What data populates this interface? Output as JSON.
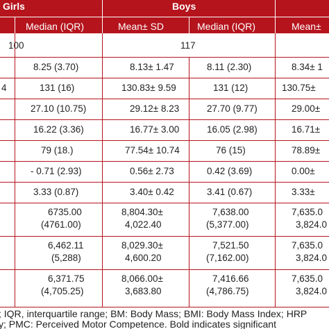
{
  "header": {
    "girls_label": "Girls",
    "boys_label": "Boys",
    "columns": {
      "girls_median": "Median (IQR)",
      "boys_mean": "Mean± SD",
      "boys_median": "Median (IQR)",
      "partial_mean": "Mean±"
    }
  },
  "counts": {
    "girls_n": "100",
    "boys_n": "117"
  },
  "rows": [
    {
      "left_fragment": "",
      "girls_median": "8.25 (3.70)",
      "boys_mean": "8.13± 1.47",
      "boys_median": "8.11 (2.30)",
      "partial": "8.34± 1"
    },
    {
      "left_fragment": "4",
      "girls_median": "131 (16)",
      "boys_mean": "130.83± 9.59",
      "boys_median": "131 (12)",
      "partial": "130.75±"
    },
    {
      "left_fragment": "",
      "girls_median": "27.10 (10.75)",
      "boys_mean": "29.12± 8.23",
      "boys_median": "27.70 (9.77)",
      "partial": "29.00±"
    },
    {
      "left_fragment": "",
      "girls_median": "16.22 (3.36)",
      "boys_mean": "16.77± 3.00",
      "boys_median": "16.05 (2.98)",
      "partial": "16.71±"
    },
    {
      "left_fragment": "",
      "girls_median": "79 (18.)",
      "boys_mean": "77.54± 10.74",
      "boys_median": "76 (15)",
      "partial": "78.89±"
    },
    {
      "left_fragment": "",
      "girls_median": "- 0.71 (2.93)",
      "boys_mean": "0.56± 2.73",
      "boys_median": "0.42 (3.69)",
      "partial": "0.00±"
    },
    {
      "left_fragment": "",
      "girls_median": "3.33 (0.87)",
      "boys_mean": "3.40± 0.42",
      "boys_median": "3.41 (0.67)",
      "partial": "3.33±"
    }
  ],
  "two_line_rows": [
    {
      "girls_median_1": "6735.00",
      "girls_median_2": "(4761.00)",
      "boys_mean_1": "8,804.30±",
      "boys_mean_2": "4,022.40",
      "boys_median_1": "7,638.00",
      "boys_median_2": "(5,377.00)",
      "partial_1": "7,635.0",
      "partial_2": "3,824.0"
    },
    {
      "girls_median_1": "6,462.11",
      "girls_median_2": "(5,288)",
      "boys_mean_1": "8,029.30±",
      "boys_mean_2": "4,600.20",
      "boys_median_1": "7,521.50",
      "boys_median_2": "(7,162.00)",
      "partial_1": "7,635.0",
      "partial_2": "3,824.0"
    },
    {
      "girls_median_1": "6,371.75",
      "girls_median_2": "(4,705.25)",
      "boys_mean_1": "8,066.00±",
      "boys_mean_2": "3,683.80",
      "boys_median_1": "7,416.66",
      "boys_median_2": "(4,786.75)",
      "partial_1": "7,635.0",
      "partial_2": "3,824.0"
    }
  ],
  "footer": {
    "line1": "; IQR, interquartile range; BM: Body Mass; BMI: Body Mass Index; HRP",
    "line2": "y; PMC: Perceived Motor Competence. Bold indicates significant"
  }
}
